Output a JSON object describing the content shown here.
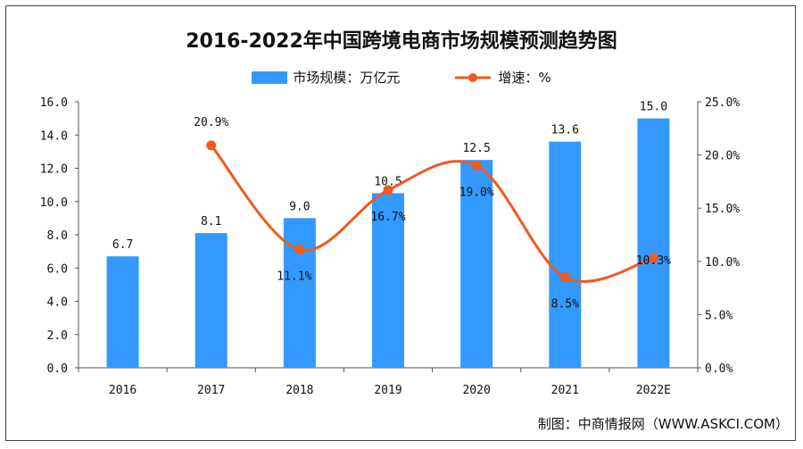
{
  "chart_data": {
    "type": "bar+line",
    "title": "2016-2022年中国跨境电商市场规模预测趋势图",
    "categories": [
      "2016",
      "2017",
      "2018",
      "2019",
      "2020",
      "2021",
      "2022E"
    ],
    "series": [
      {
        "name": "市场规模：万亿元",
        "type": "bar",
        "axis": "left",
        "color": "#3399ff",
        "values": [
          6.7,
          8.1,
          9.0,
          10.5,
          12.5,
          13.6,
          15.0
        ],
        "labels": [
          "6.7",
          "8.1",
          "9.0",
          "10.5",
          "12.5",
          "13.6",
          "15.0"
        ]
      },
      {
        "name": "增速：%",
        "type": "line",
        "axis": "right",
        "color": "#f05a1e",
        "smooth": true,
        "values": [
          null,
          20.9,
          11.1,
          16.7,
          19.0,
          8.5,
          10.3
        ],
        "labels": [
          "",
          "20.9%",
          "11.1%",
          "16.7%",
          "19.0%",
          "8.5%",
          "10.3%"
        ]
      }
    ],
    "y_left": {
      "lim": [
        0,
        16
      ],
      "ticks": [
        "0.0",
        "2.0",
        "4.0",
        "6.0",
        "8.0",
        "10.0",
        "12.0",
        "14.0",
        "16.0"
      ]
    },
    "y_right": {
      "lim": [
        0,
        25
      ],
      "ticks": [
        "0.0%",
        "5.0%",
        "10.0%",
        "15.0%",
        "20.0%",
        "25.0%"
      ]
    },
    "grid": false,
    "legend_position": "top"
  },
  "source": "制图：中商情报网（WWW.ASKCI.COM）"
}
